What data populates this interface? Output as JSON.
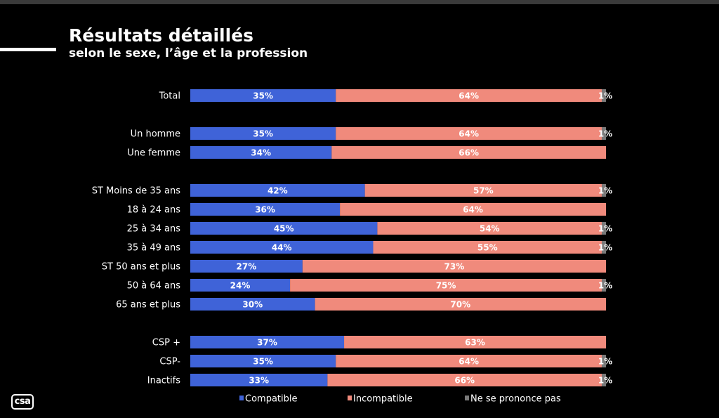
{
  "header": {
    "title": "Résultats détaillés",
    "subtitle": "selon le sexe, l’âge et la profession"
  },
  "logo": {
    "text": "csa"
  },
  "colors": {
    "compatible": "#3f63d8",
    "incompatible": "#f08a7c",
    "nspp": "#7a7a7a"
  },
  "chart_data": {
    "type": "bar",
    "orientation": "horizontal",
    "stacked": true,
    "title": "",
    "xlabel": "",
    "ylabel": "",
    "xlim": [
      0,
      100
    ],
    "legend_position": "bottom",
    "categories": [
      "Total",
      "Un homme",
      "Une femme",
      "ST Moins de 35 ans",
      "18 à 24 ans",
      "25 à 34 ans",
      "35 à 49 ans",
      "ST 50 ans et plus",
      "50 à 64 ans",
      "65 ans et plus",
      "CSP +",
      "CSP-",
      "Inactifs"
    ],
    "groups": [
      [
        0
      ],
      [
        1,
        2
      ],
      [
        3,
        4,
        5,
        6,
        7,
        8,
        9
      ],
      [
        10,
        11,
        12
      ]
    ],
    "series": [
      {
        "name": "Compatible",
        "values": [
          35,
          35,
          34,
          42,
          36,
          45,
          44,
          27,
          24,
          30,
          37,
          35,
          33
        ],
        "labels": [
          "35%",
          "35%",
          "34%",
          "42%",
          "36%",
          "45%",
          "44%",
          "27%",
          "24%",
          "30%",
          "37%",
          "35%",
          "33%"
        ]
      },
      {
        "name": "Incompatible",
        "values": [
          64,
          64,
          66,
          57,
          64,
          54,
          55,
          73,
          75,
          70,
          63,
          64,
          66
        ],
        "labels": [
          "64%",
          "64%",
          "66%",
          "57%",
          "64%",
          "54%",
          "55%",
          "73%",
          "75%",
          "70%",
          "63%",
          "64%",
          "66%"
        ]
      },
      {
        "name": "Ne se prononce pas",
        "values": [
          1,
          1,
          0,
          1,
          0,
          1,
          1,
          0,
          1,
          0,
          0,
          1,
          1
        ],
        "labels": [
          "1%",
          "1%",
          "",
          "1%",
          "",
          "1%",
          "1%",
          "",
          "1%",
          "",
          "",
          "1%",
          "1%"
        ]
      }
    ]
  }
}
